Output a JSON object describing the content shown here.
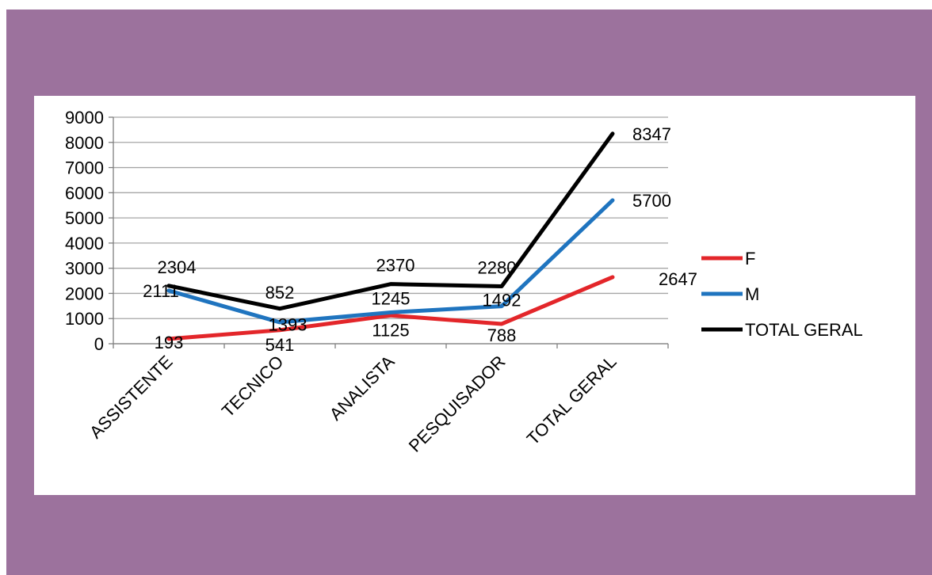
{
  "chart_data": {
    "type": "line",
    "categories": [
      "ASSISTENTE",
      "TECNICO",
      "ANALISTA",
      "PESQUISADOR",
      "TOTAL GERAL"
    ],
    "series": [
      {
        "name": "F",
        "color": "#e3262a",
        "values": [
          193,
          541,
          1125,
          788,
          2647
        ]
      },
      {
        "name": "M",
        "color": "#1f74bf",
        "values": [
          2111,
          852,
          1245,
          1492,
          5700
        ]
      },
      {
        "name": "TOTAL GERAL",
        "color": "#000000",
        "values": [
          2304,
          1393,
          2370,
          2280,
          8347
        ]
      }
    ],
    "ylim": [
      0,
      9000
    ],
    "yticks": [
      0,
      1000,
      2000,
      3000,
      4000,
      5000,
      6000,
      7000,
      8000,
      9000
    ],
    "grid": true,
    "legend": "right"
  },
  "colors": {
    "background": "#9c729d",
    "card": "#ffffff",
    "grid": "#a6a6a6"
  }
}
